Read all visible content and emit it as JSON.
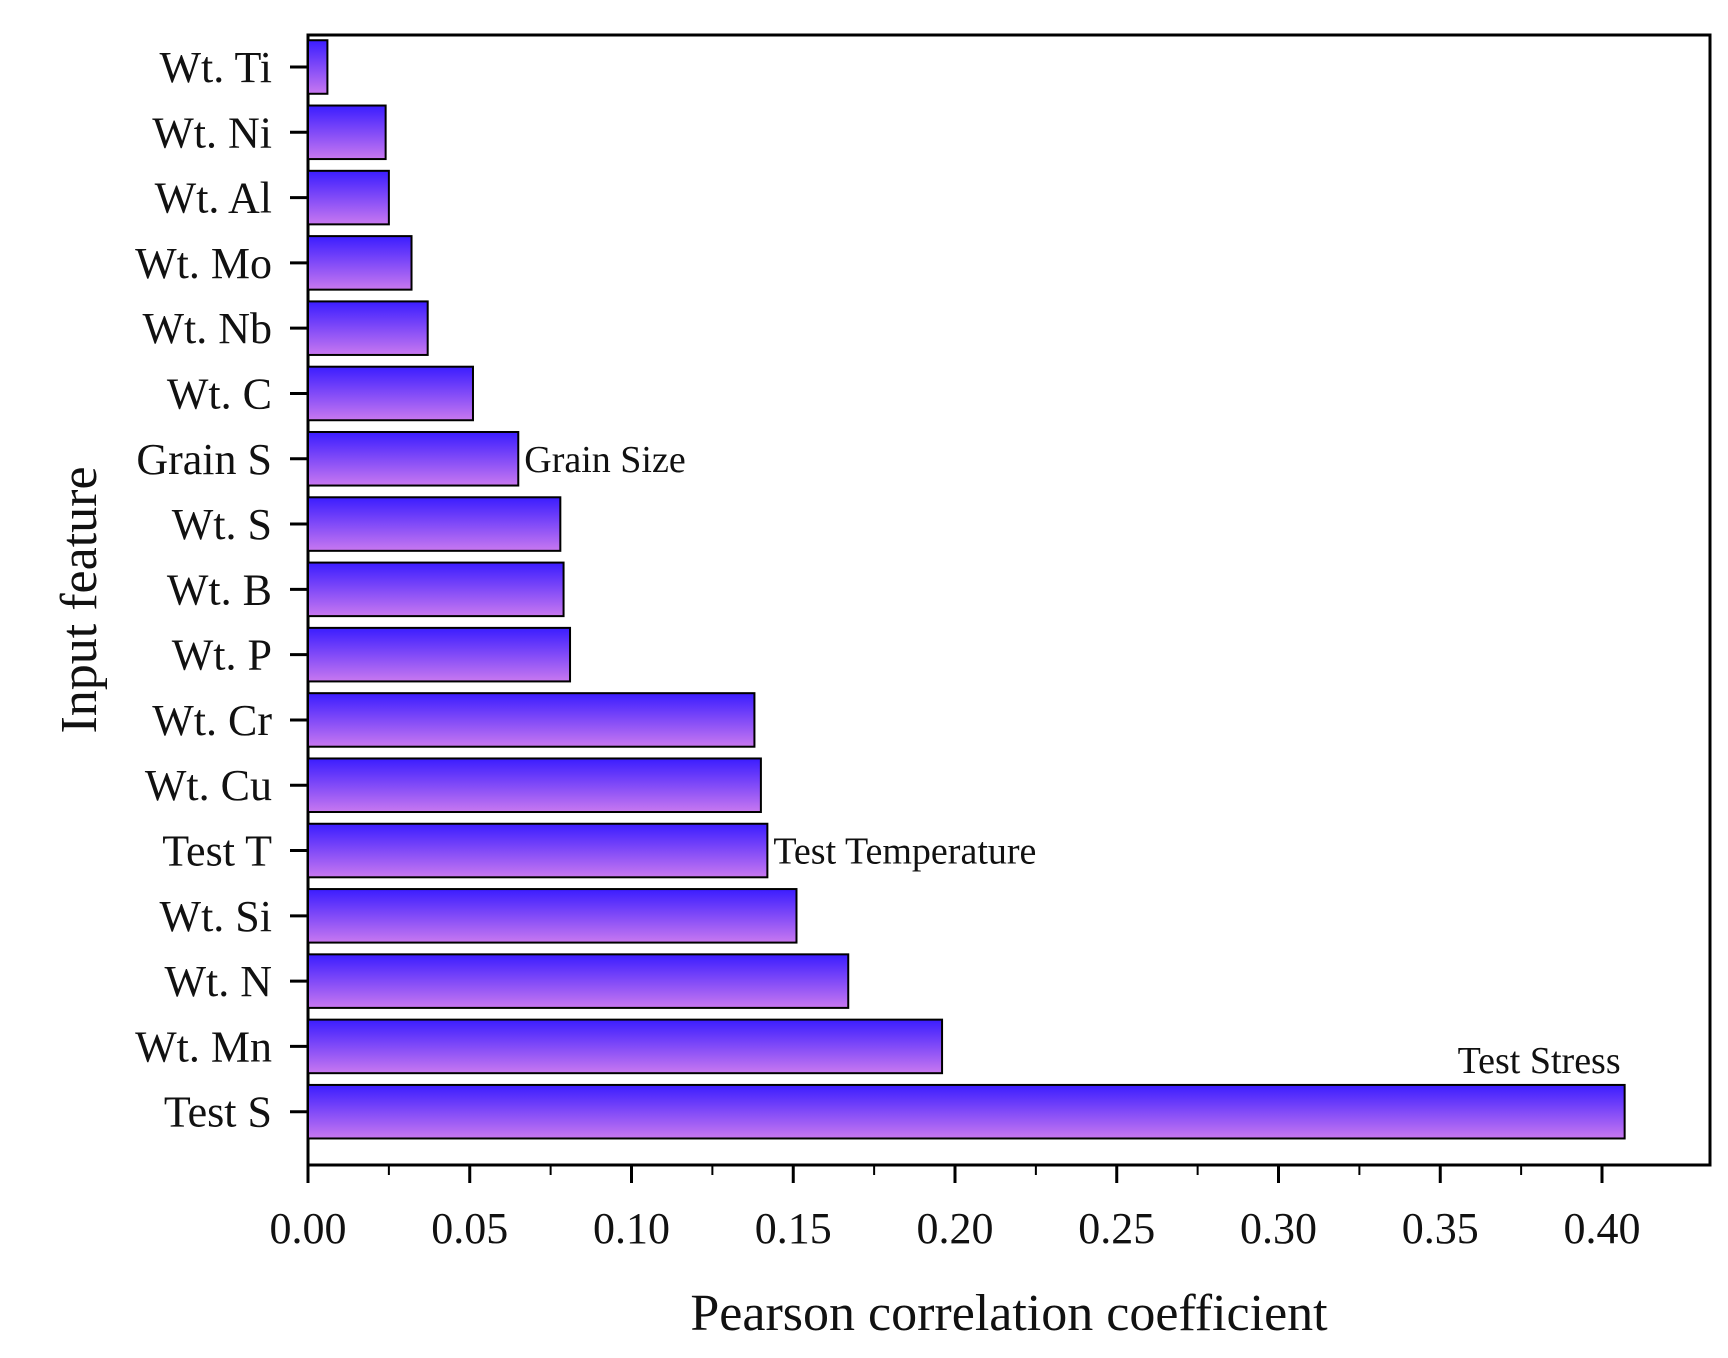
{
  "chart_data": {
    "type": "bar",
    "orientation": "horizontal",
    "xlabel": "Pearson correlation coefficient",
    "ylabel": "Input feature",
    "xlim": [
      0,
      0.44
    ],
    "xticks": [
      "0.00",
      "0.05",
      "0.10",
      "0.15",
      "0.20",
      "0.25",
      "0.30",
      "0.35",
      "0.40"
    ],
    "grid": false,
    "categories": [
      "Wt. Ti",
      "Wt. Ni",
      "Wt. Al",
      "Wt. Mo",
      "Wt. Nb",
      "Wt. C",
      "Grain S",
      "Wt. S",
      "Wt. B",
      "Wt. P",
      "Wt. Cr",
      "Wt. Cu",
      "Test T",
      "Wt. Si",
      "Wt. N",
      "Wt. Mn",
      "Test S"
    ],
    "values": [
      0.006,
      0.024,
      0.025,
      0.032,
      0.037,
      0.051,
      0.065,
      0.078,
      0.079,
      0.081,
      0.138,
      0.14,
      0.142,
      0.151,
      0.167,
      0.196,
      0.407
    ],
    "annotations": [
      {
        "category": "Grain S",
        "text": "Grain Size"
      },
      {
        "category": "Test T",
        "text": "Test Temperature"
      },
      {
        "category": "Test S",
        "text": "Test Stress"
      }
    ],
    "colors": {
      "bar_top": "#3b1dff",
      "bar_bottom": "#c878f0",
      "edge": "#000000"
    }
  }
}
